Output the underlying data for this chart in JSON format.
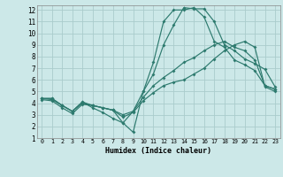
{
  "xlabel": "Humidex (Indice chaleur)",
  "bg_color": "#cce8e8",
  "grid_color": "#aacccc",
  "line_color": "#2d7a6e",
  "xlim": [
    -0.5,
    23.5
  ],
  "ylim": [
    1,
    12.4
  ],
  "xticks": [
    0,
    1,
    2,
    3,
    4,
    5,
    6,
    7,
    8,
    9,
    10,
    11,
    12,
    13,
    14,
    15,
    16,
    17,
    18,
    19,
    20,
    21,
    22,
    23
  ],
  "yticks": [
    1,
    2,
    3,
    4,
    5,
    6,
    7,
    8,
    9,
    10,
    11,
    12
  ],
  "line1": [
    4.4,
    4.4,
    3.8,
    3.3,
    4.1,
    3.6,
    3.2,
    2.7,
    2.3,
    1.5,
    5.0,
    7.5,
    11.0,
    12.0,
    12.0,
    12.2,
    11.4,
    9.3,
    8.8,
    7.7,
    7.3,
    6.8,
    5.5,
    5.2
  ],
  "line2": [
    4.4,
    4.4,
    3.8,
    3.3,
    4.1,
    3.8,
    3.6,
    3.4,
    2.3,
    3.3,
    5.0,
    6.5,
    9.0,
    10.7,
    12.2,
    12.1,
    12.1,
    11.0,
    9.0,
    8.5,
    7.8,
    7.4,
    6.9,
    5.4
  ],
  "line3": [
    4.4,
    4.3,
    3.8,
    3.3,
    4.0,
    3.8,
    3.6,
    3.4,
    3.0,
    3.3,
    4.5,
    5.5,
    6.2,
    6.8,
    7.5,
    7.9,
    8.5,
    9.0,
    9.3,
    8.8,
    8.5,
    7.7,
    5.5,
    5.2
  ],
  "line4": [
    4.3,
    4.2,
    3.6,
    3.1,
    3.9,
    3.8,
    3.6,
    3.4,
    2.8,
    3.2,
    4.2,
    4.9,
    5.5,
    5.8,
    6.0,
    6.5,
    7.0,
    7.8,
    8.5,
    9.0,
    9.3,
    8.8,
    5.4,
    5.0
  ]
}
